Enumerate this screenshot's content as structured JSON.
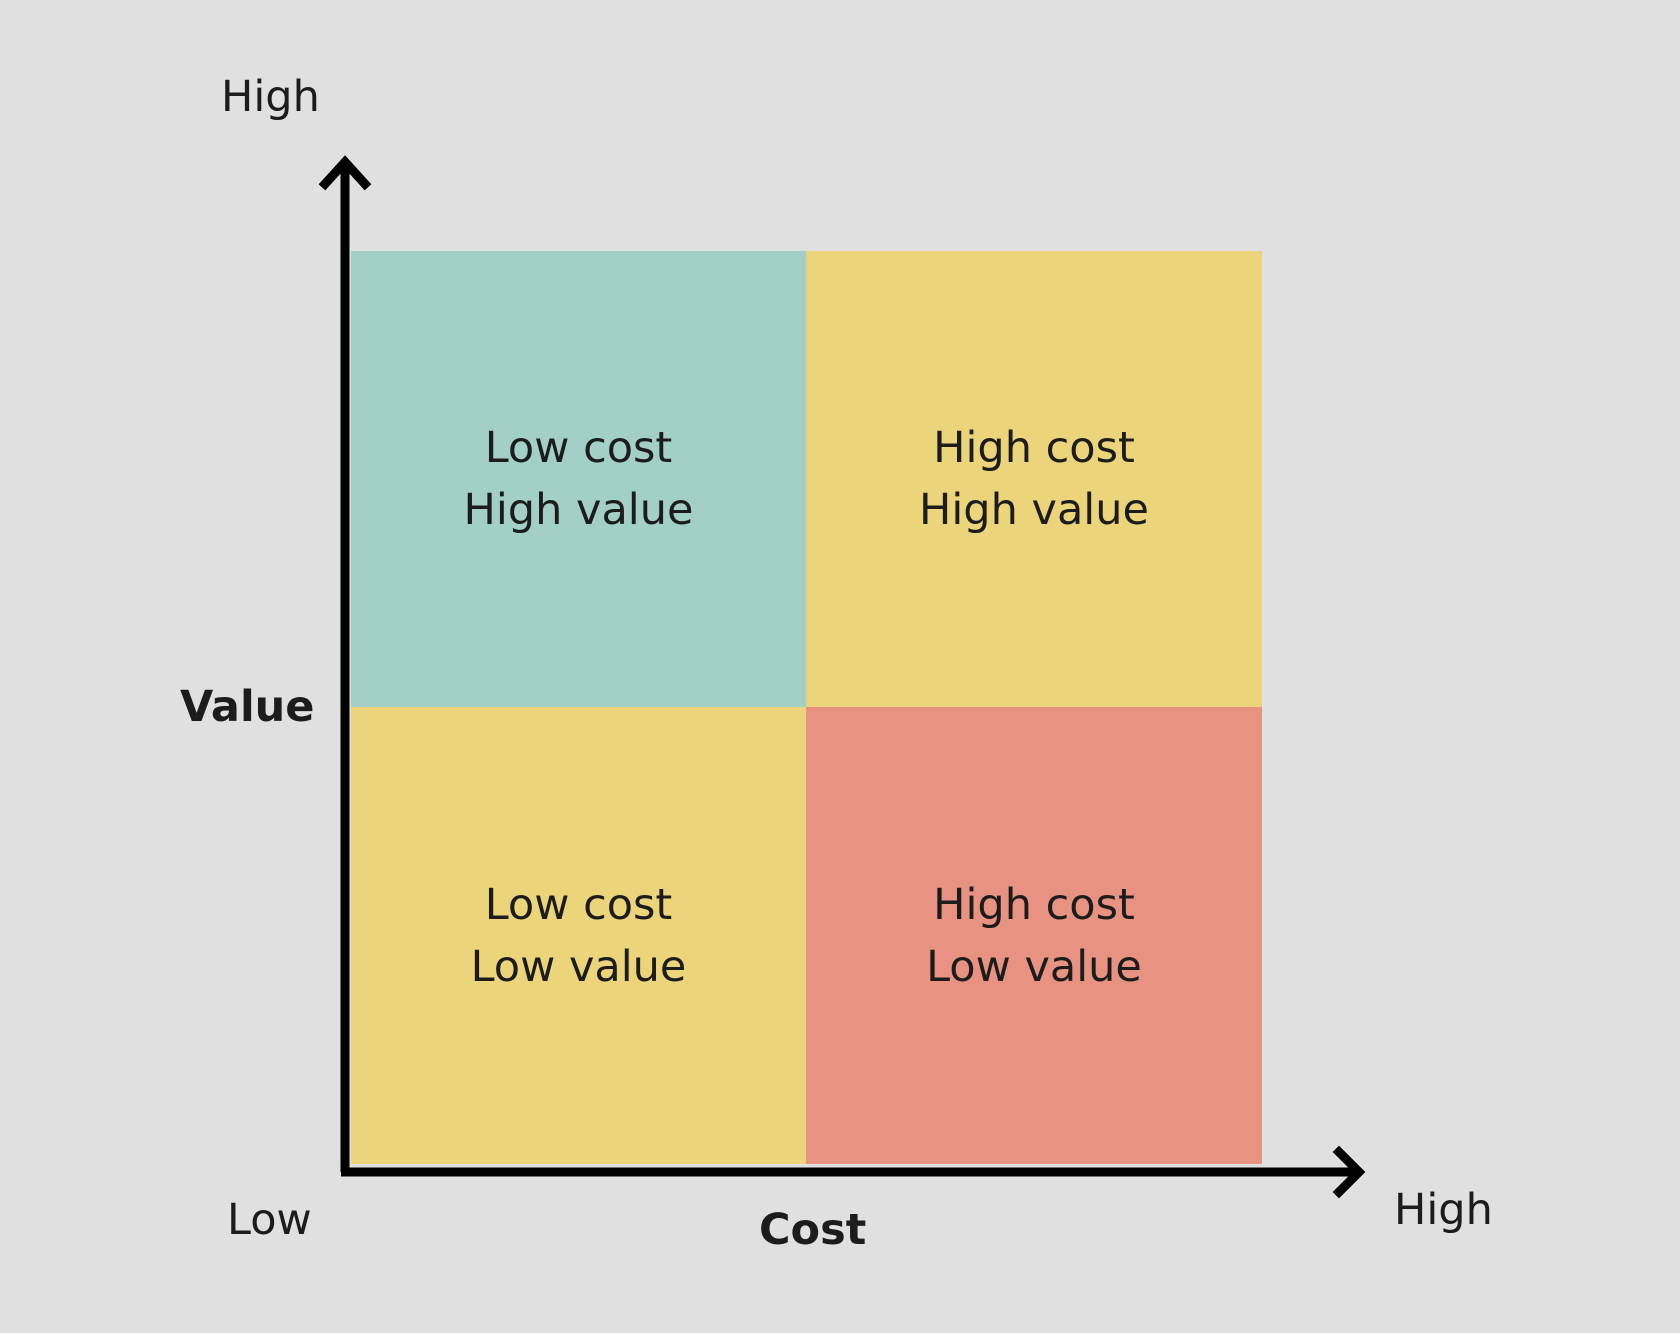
{
  "quadrants": {
    "top_left": {
      "line1": "Low cost",
      "line2": "High value",
      "color": "#a3d0c6"
    },
    "top_right": {
      "line1": "High cost",
      "line2": "High value",
      "color": "#ebd47a"
    },
    "bottom_left": {
      "line1": "Low cost",
      "line2": "Low value",
      "color": "#ebd47a"
    },
    "bottom_right": {
      "line1": "High cost",
      "line2": "Low value",
      "color": "#e89282"
    }
  },
  "y_axis": {
    "label": "Value",
    "high": "High",
    "low": "Low"
  },
  "x_axis": {
    "label": "Cost",
    "high": "High"
  },
  "colors": {
    "background": "#e0e0e0",
    "axis": "#000000",
    "text": "#1c1c1c"
  }
}
